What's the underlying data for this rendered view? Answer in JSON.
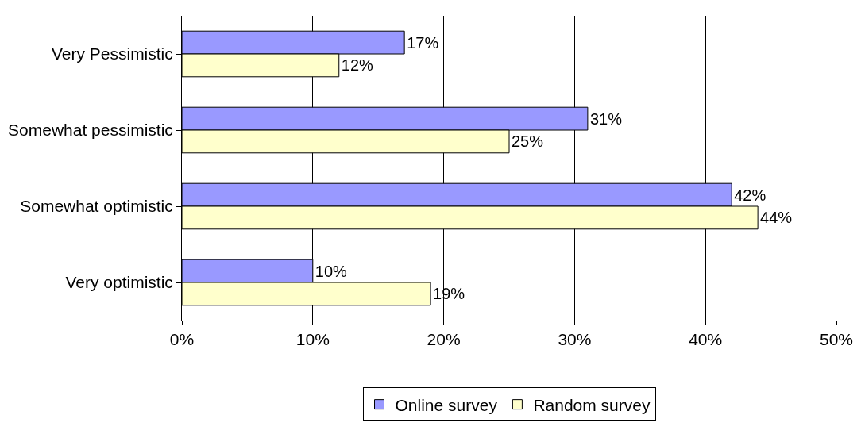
{
  "chart_data": {
    "type": "bar",
    "orientation": "horizontal",
    "categories": [
      "Very Pessimistic",
      "Somewhat pessimistic",
      "Somewhat optimistic",
      "Very optimistic"
    ],
    "series": [
      {
        "name": "Online survey",
        "color": "#9999ff",
        "values": [
          17,
          31,
          42,
          10
        ],
        "value_labels": [
          "17%",
          "31%",
          "42%",
          "10%"
        ]
      },
      {
        "name": "Random survey",
        "color": "#ffffcc",
        "values": [
          12,
          25,
          44,
          19
        ],
        "value_labels": [
          "12%",
          "25%",
          "44%",
          "19%"
        ]
      }
    ],
    "xlim": [
      0,
      50
    ],
    "xticks": [
      {
        "value": 0,
        "label": "0%"
      },
      {
        "value": 10,
        "label": "10%"
      },
      {
        "value": 20,
        "label": "20%"
      },
      {
        "value": 30,
        "label": "30%"
      },
      {
        "value": 40,
        "label": "40%"
      },
      {
        "value": 50,
        "label": "50%"
      }
    ],
    "grid": "x",
    "legend": "bottom"
  }
}
